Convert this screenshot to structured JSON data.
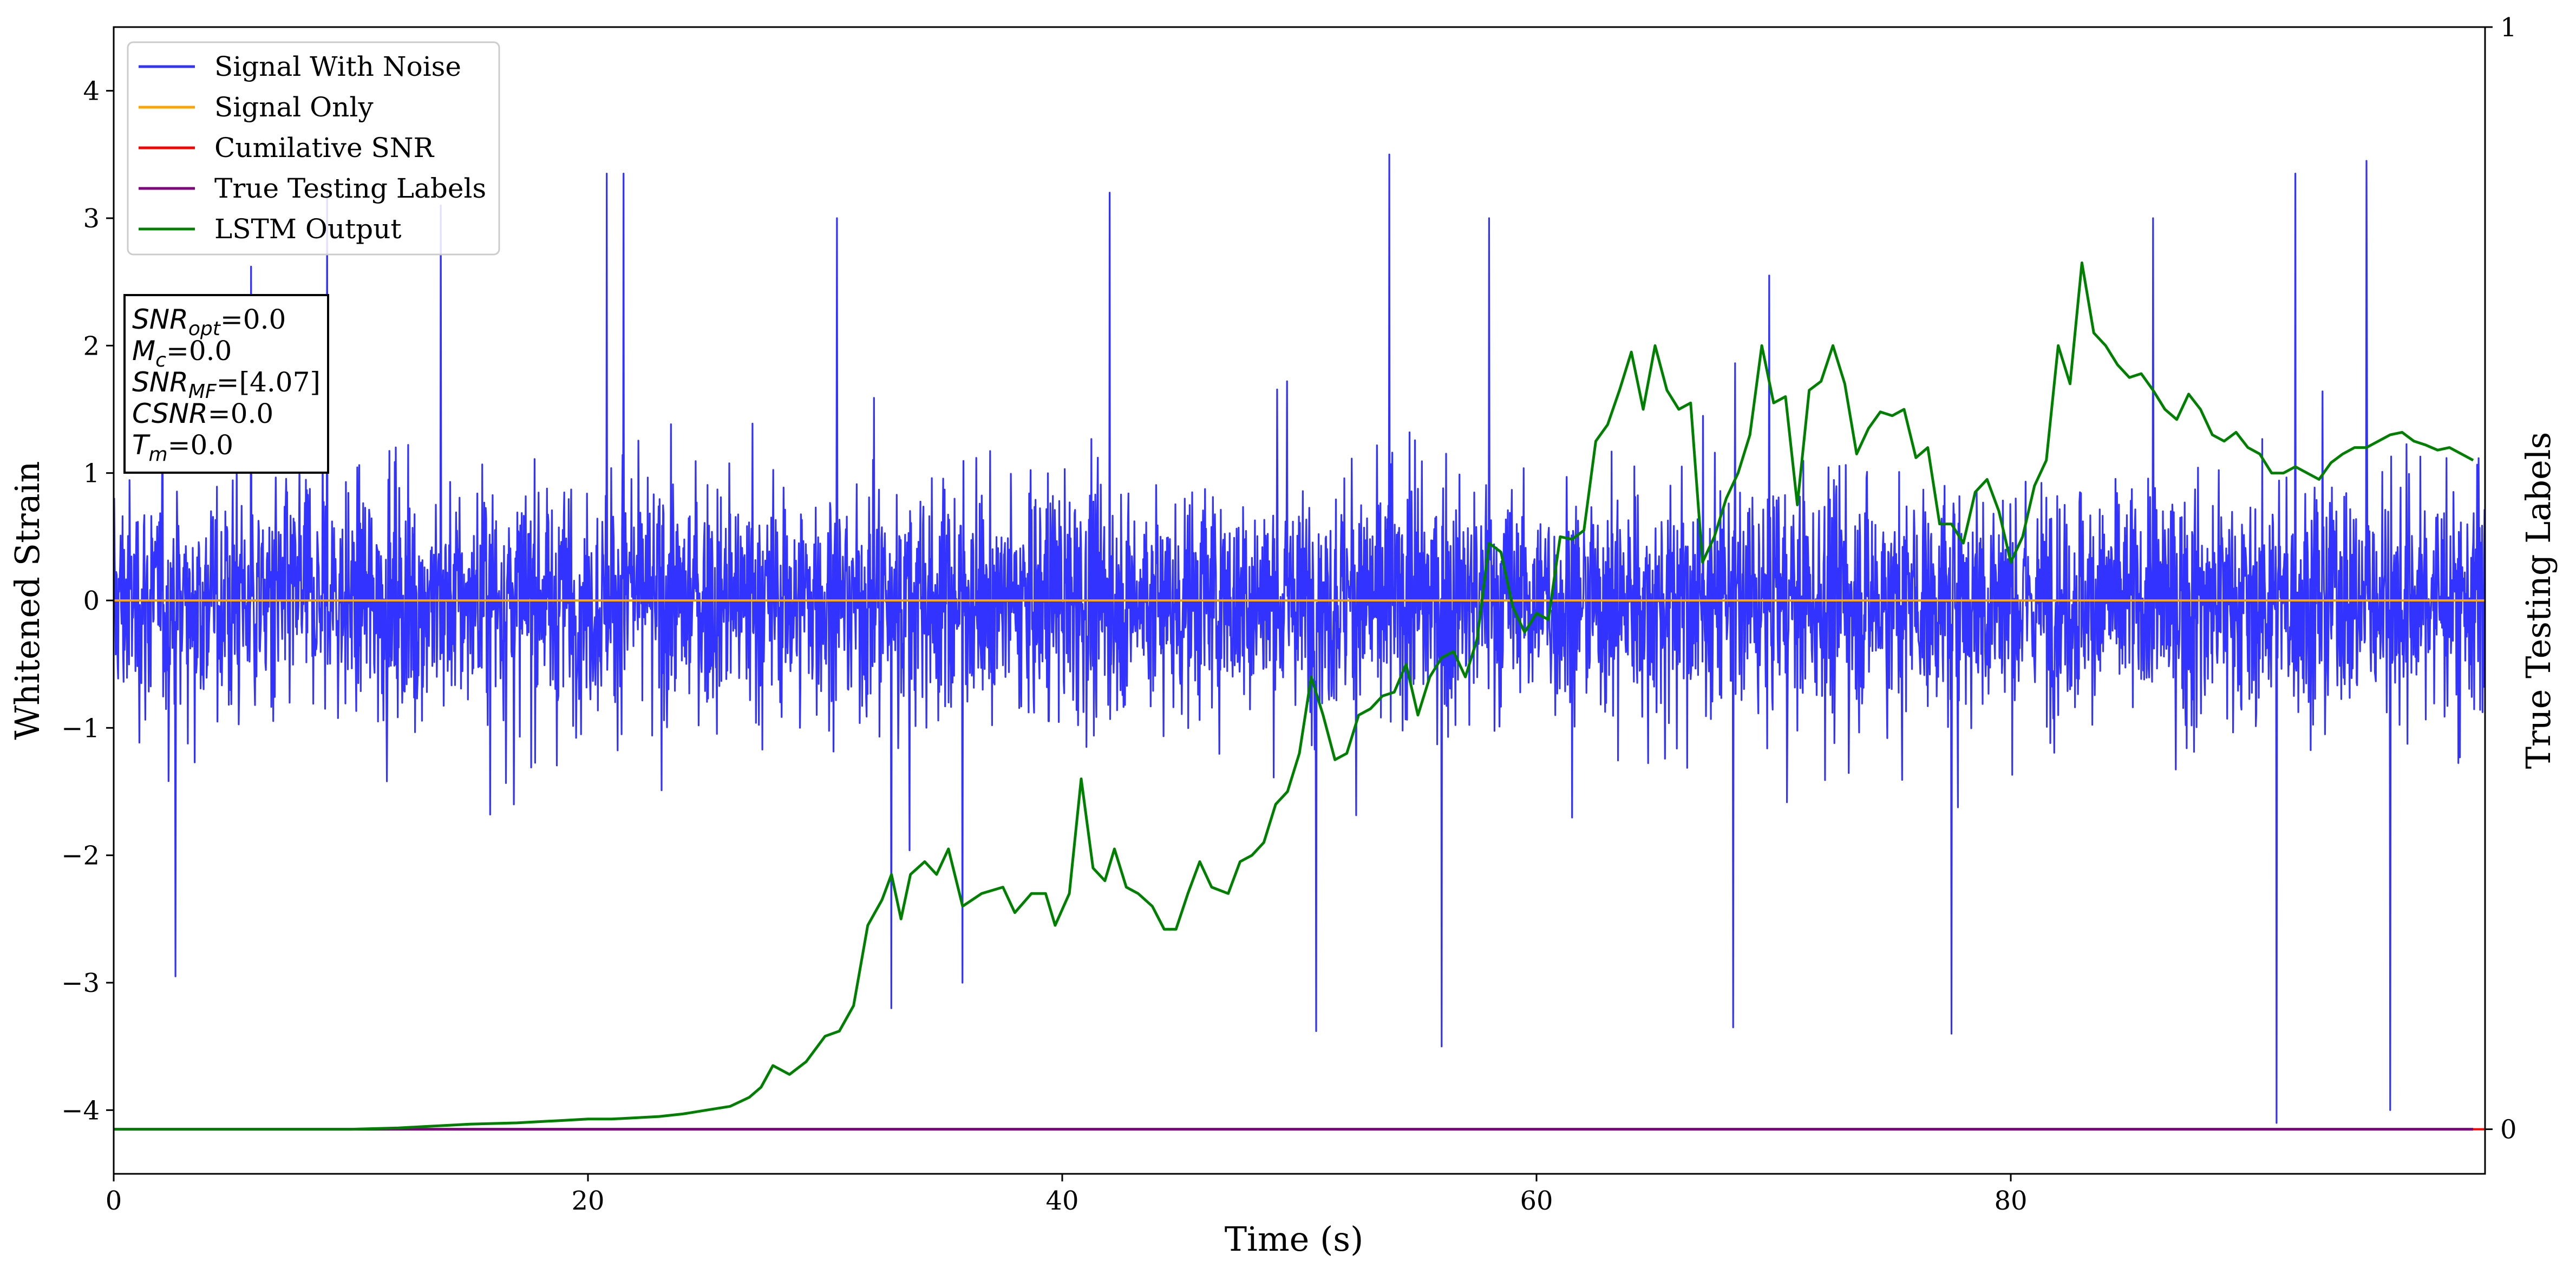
{
  "chart_data": {
    "type": "line",
    "title": "",
    "xlabel": "Time (s)",
    "ylabel": "Whitened Strain",
    "y2label": "True Testing Labels",
    "xlim": [
      0,
      100
    ],
    "ylim": [
      -4.5,
      4.5
    ],
    "y2lim": [
      0,
      1
    ],
    "x_ticks": [
      0,
      20,
      40,
      60,
      80
    ],
    "x_tick_labels": [
      "0",
      "20",
      "40",
      "60",
      "80"
    ],
    "y_ticks": [
      -4,
      -3,
      -2,
      -1,
      0,
      1,
      2,
      3,
      4
    ],
    "y_tick_labels": [
      "−4",
      "−3",
      "−2",
      "−1",
      "0",
      "1",
      "2",
      "3",
      "4"
    ],
    "y2_ticks": [
      0,
      1
    ],
    "y2_tick_labels": [
      "0",
      "1"
    ],
    "grid": false,
    "legend_position": "top-left",
    "series": [
      {
        "name": "Signal With Noise",
        "color": "#3333ff",
        "axis": "left",
        "description": "dense noise band roughly between -1.3 and 1.3 with spikes to about 3.5 and -4.1",
        "peaks": [
          {
            "x": 5.8,
            "y": 2.62
          },
          {
            "x": 9.0,
            "y": 3.2
          },
          {
            "x": 13.8,
            "y": 3.1
          },
          {
            "x": 20.8,
            "y": 3.35
          },
          {
            "x": 21.5,
            "y": 3.35
          },
          {
            "x": 30.5,
            "y": 3.0
          },
          {
            "x": 42.0,
            "y": 3.2
          },
          {
            "x": 53.8,
            "y": 3.5
          },
          {
            "x": 58.0,
            "y": 3.0
          },
          {
            "x": 86.0,
            "y": 3.0
          },
          {
            "x": 92.0,
            "y": 3.35
          },
          {
            "x": 95.0,
            "y": 3.45
          }
        ],
        "troughs": [
          {
            "x": 2.6,
            "y": -2.95
          },
          {
            "x": 32.8,
            "y": -3.2
          },
          {
            "x": 35.8,
            "y": -3.0
          },
          {
            "x": 50.7,
            "y": -3.38
          },
          {
            "x": 56.0,
            "y": -3.5
          },
          {
            "x": 68.3,
            "y": -3.35
          },
          {
            "x": 77.5,
            "y": -3.4
          },
          {
            "x": 91.2,
            "y": -4.1
          },
          {
            "x": 96.0,
            "y": -4.0
          }
        ]
      },
      {
        "name": "Signal Only",
        "color": "#ffa500",
        "axis": "left",
        "x": [
          0,
          100
        ],
        "y": [
          0,
          0
        ]
      },
      {
        "name": "Cumilative SNR",
        "color": "#ff0000",
        "axis": "right",
        "x": [
          0,
          100
        ],
        "y": [
          0,
          0
        ]
      },
      {
        "name": "True Testing Labels",
        "color": "#800080",
        "axis": "right",
        "x": [
          0,
          99.5
        ],
        "y": [
          0,
          0
        ]
      },
      {
        "name": "LSTM Output",
        "color": "#008000",
        "axis": "left",
        "x": [
          0,
          5,
          10,
          12,
          13,
          14,
          15,
          17,
          18,
          19,
          20,
          21,
          22,
          23,
          24,
          25,
          26,
          26.8,
          27.3,
          27.8,
          28.5,
          29.2,
          30,
          30.6,
          31.2,
          31.8,
          32.4,
          32.8,
          33.2,
          33.6,
          34.2,
          34.7,
          35.2,
          35.8,
          36.6,
          37.5,
          38,
          38.7,
          39.3,
          39.7,
          40.3,
          40.8,
          41.3,
          41.8,
          42.2,
          42.7,
          43.2,
          43.8,
          44.3,
          44.8,
          45.3,
          45.8,
          46.3,
          47,
          47.5,
          48,
          48.5,
          49,
          49.5,
          50,
          50.5,
          51,
          51.5,
          52,
          52.5,
          53,
          53.5,
          54,
          54.5,
          55,
          55.5,
          56,
          56.5,
          57,
          57.5,
          58,
          58.5,
          59,
          59.5,
          60,
          60.5,
          61,
          61.5,
          62,
          62.5,
          63,
          63.5,
          64,
          64.5,
          65,
          65.5,
          66,
          66.5,
          67,
          67.5,
          68,
          68.5,
          69,
          69.5,
          70,
          70.5,
          71,
          71.5,
          72,
          72.5,
          73,
          73.5,
          74,
          74.5,
          75,
          75.5,
          76,
          76.5,
          77,
          77.5,
          78,
          78.5,
          79,
          79.5,
          80,
          80.5,
          81,
          81.5,
          82,
          82.5,
          83,
          83.5,
          84,
          84.5,
          85,
          85.5,
          86,
          86.5,
          87,
          87.5,
          88,
          88.5,
          89,
          89.5,
          90,
          90.5,
          91,
          91.5,
          92,
          92.5,
          93,
          93.5,
          94,
          94.5,
          95,
          95.5,
          96,
          96.5,
          97,
          97.5,
          98,
          98.5,
          99.5
        ],
        "y": [
          -4.15,
          -4.15,
          -4.15,
          -4.14,
          -4.13,
          -4.12,
          -4.11,
          -4.1,
          -4.09,
          -4.08,
          -4.07,
          -4.07,
          -4.06,
          -4.05,
          -4.03,
          -4.0,
          -3.97,
          -3.9,
          -3.82,
          -3.65,
          -3.72,
          -3.62,
          -3.42,
          -3.38,
          -3.18,
          -2.55,
          -2.35,
          -2.15,
          -2.5,
          -2.15,
          -2.05,
          -2.15,
          -1.95,
          -2.4,
          -2.3,
          -2.25,
          -2.45,
          -2.3,
          -2.3,
          -2.55,
          -2.3,
          -1.4,
          -2.1,
          -2.2,
          -1.95,
          -2.25,
          -2.3,
          -2.4,
          -2.58,
          -2.58,
          -2.3,
          -2.05,
          -2.25,
          -2.3,
          -2.05,
          -2.0,
          -1.9,
          -1.6,
          -1.5,
          -1.2,
          -0.6,
          -0.9,
          -1.25,
          -1.2,
          -0.9,
          -0.85,
          -0.75,
          -0.72,
          -0.5,
          -0.9,
          -0.6,
          -0.45,
          -0.4,
          -0.6,
          -0.3,
          0.45,
          0.38,
          -0.05,
          -0.25,
          -0.1,
          -0.15,
          0.5,
          0.48,
          0.55,
          1.25,
          1.38,
          1.65,
          1.95,
          1.5,
          2.0,
          1.65,
          1.5,
          1.55,
          0.3,
          0.5,
          0.8,
          1.0,
          1.3,
          2.0,
          1.55,
          1.6,
          0.75,
          1.65,
          1.72,
          2.0,
          1.7,
          1.15,
          1.35,
          1.48,
          1.45,
          1.5,
          1.12,
          1.2,
          0.6,
          0.6,
          0.45,
          0.85,
          0.95,
          0.7,
          0.3,
          0.5,
          0.9,
          1.1,
          2.0,
          1.7,
          2.65,
          2.1,
          2.0,
          1.85,
          1.75,
          1.78,
          1.65,
          1.5,
          1.42,
          1.62,
          1.5,
          1.3,
          1.25,
          1.32,
          1.2,
          1.15,
          1.0,
          1.0,
          1.05,
          1.0,
          0.95,
          1.08,
          1.15,
          1.2,
          1.2,
          1.25,
          1.3,
          1.32,
          1.25,
          1.22,
          1.18,
          1.2,
          1.1
        ]
      }
    ]
  },
  "info_box": {
    "lines": [
      {
        "name": "SNR",
        "sub": "opt",
        "value": "=0.0"
      },
      {
        "name": "M",
        "sub": "c",
        "value": "=0.0"
      },
      {
        "name": "SNR",
        "sub": "MF",
        "value": "=[4.07]"
      },
      {
        "name": "CSNR",
        "sub": "",
        "value": "=0.0"
      },
      {
        "name": "T",
        "sub": "m",
        "value": "=0.0"
      }
    ]
  }
}
